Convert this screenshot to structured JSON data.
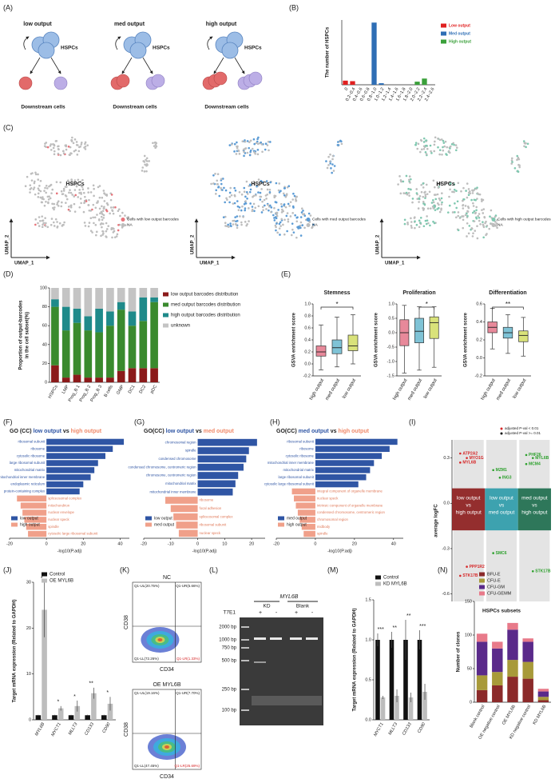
{
  "panel_labels": [
    "(A)",
    "(B)",
    "(C)",
    "(D)",
    "(E)",
    "(F)",
    "(G)",
    "(H)",
    "(I)",
    "(J)",
    "(K)",
    "(L)",
    "(M)",
    "(N)"
  ],
  "diagram": {
    "groups": [
      {
        "title": "low output",
        "hspc": "HSPCs",
        "downstream": "Downstream cells"
      },
      {
        "title": "med output",
        "hspc": "HSPCs",
        "downstream": "Downstream cells"
      },
      {
        "title": "high output",
        "hspc": "HSPCs",
        "downstream": "Downstream cells"
      }
    ]
  },
  "umaps": [
    {
      "center_label": "HSPCs",
      "legend": [
        "Cells with low output barcodes",
        "NA"
      ],
      "color": "#e8737a",
      "xlabel": "UMAP_1",
      "ylabel": "UMAP_2"
    },
    {
      "center_label": "HSPCs",
      "legend": [
        "Cells with med output barcodes",
        "NA"
      ],
      "color": "#5b9bd5",
      "xlabel": "UMAP_1",
      "ylabel": "UMAP_2"
    },
    {
      "center_label": "HSPCs",
      "legend": [
        "Cells with high output barcodes",
        "NA"
      ],
      "color": "#7fc8b0",
      "xlabel": "UMAP_1",
      "ylabel": "UMAP_2"
    }
  ],
  "flow": {
    "xlabel": "CD34",
    "ylabel": "CD38",
    "plots": [
      {
        "title": "NC",
        "quadrants": [
          "Q1-UL(20.75%)",
          "Q1-UR(5.66%)",
          "Q1-LL(72.26%)",
          "Q1-LR(1.33%)"
        ]
      },
      {
        "title": "OE MYL6B",
        "quadrants": [
          "Q1-UL(19.16%)",
          "Q1-UR(7.70%)",
          "Q1-LL(47.45%)",
          "Q1-LR(25.69%)"
        ]
      }
    ]
  },
  "gel": {
    "title": "MYL6B",
    "groups": [
      "KD",
      "Blank"
    ],
    "row_label": "T7E1",
    "lanes": [
      "+",
      "-",
      "+",
      "-"
    ],
    "ladder": [
      "2000 bp",
      "1000 bp",
      "750 bp",
      "500 bp",
      "250 bp",
      "100 bp"
    ]
  },
  "chart_data": [
    {
      "type": "bar",
      "stacked": true,
      "ylabel": "The number of HSPCs",
      "categories": [
        "0",
        "0.2~0.4",
        "0.4~0.6",
        "0.6~0.8",
        "0.8~1.0",
        "1.0~1.2",
        "1.2~1.4",
        "1.4~1.6",
        "1.6~1.8",
        "1.8~2.0",
        "2.0~2.2",
        "2.2~2.4",
        "2.4~2.6"
      ],
      "series": [
        {
          "name": "Low output",
          "color": "#e02020",
          "values": [
            8,
            7,
            0,
            0,
            0,
            0,
            0,
            0,
            0,
            0,
            0,
            0,
            0
          ]
        },
        {
          "name": "Med output",
          "color": "#2e6eb5",
          "values": [
            0,
            0,
            0,
            0,
            120,
            3,
            0,
            0,
            0,
            0,
            0,
            0,
            0
          ]
        },
        {
          "name": "High output",
          "color": "#3aa03a",
          "values": [
            0,
            0,
            0,
            0,
            0,
            0,
            0,
            0,
            0,
            0,
            6,
            12,
            0
          ]
        }
      ],
      "ylim": [
        0,
        125
      ]
    },
    {
      "type": "bar",
      "stacked": true,
      "ylabel": [
        "Proportion of output-barcodes",
        "in the cell subset(%)"
      ],
      "categories": [
        "HSPCs",
        "LMP",
        "Prog_B 1",
        "Prog_B 2",
        "Prog_B 3",
        "B cells",
        "GMP",
        "DC1",
        "DC2",
        "pDC"
      ],
      "series": [
        {
          "name": "low output barcodes distribution",
          "color": "#8b1a1a",
          "values": [
            18,
            5,
            8,
            5,
            5,
            5,
            12,
            15,
            15,
            15
          ]
        },
        {
          "name": "med output barcodes distribution",
          "color": "#3a8a2e",
          "values": [
            62,
            50,
            55,
            50,
            48,
            55,
            65,
            45,
            50,
            70
          ]
        },
        {
          "name": "high output barcodes distribution",
          "color": "#1f8a8a",
          "values": [
            8,
            25,
            15,
            15,
            25,
            15,
            8,
            15,
            25,
            5
          ]
        },
        {
          "name": "unknown",
          "color": "#c4c4c4",
          "values": [
            12,
            20,
            22,
            30,
            22,
            25,
            15,
            25,
            10,
            10
          ]
        }
      ],
      "ylim": [
        0,
        100
      ],
      "yticks": [
        0,
        20,
        40,
        60,
        80,
        100
      ]
    },
    {
      "type": "box",
      "title": "Stemness",
      "ylabel": "GSVA enrichment score",
      "categories": [
        "high output",
        "med output",
        "low output"
      ],
      "colors": [
        "#e8899a",
        "#7fc3d6",
        "#d9e27a"
      ],
      "boxes": [
        {
          "min": -0.1,
          "q1": 0.13,
          "median": 0.2,
          "q3": 0.3,
          "max": 0.65
        },
        {
          "min": -0.05,
          "q1": 0.17,
          "median": 0.27,
          "q3": 0.4,
          "max": 0.78
        },
        {
          "min": 0,
          "q1": 0.22,
          "median": 0.3,
          "q3": 0.48,
          "max": 0.82
        }
      ],
      "comparisons": [
        {
          "groups": [
            "high output",
            "low output"
          ],
          "label": "*"
        }
      ],
      "ylim": [
        -0.2,
        1
      ],
      "yticks": [
        -0.2,
        {
          "value": 0,
          "label": "0.0"
        },
        0.2,
        0.4,
        0.6,
        0.8,
        {
          "value": 1,
          "label": "1.0"
        }
      ]
    },
    {
      "type": "box",
      "title": "Proliferation",
      "ylabel": "GSVA enrichment score",
      "categories": [
        "high output",
        "med output",
        "low output"
      ],
      "colors": [
        "#e8899a",
        "#7fc3d6",
        "#d9e27a"
      ],
      "boxes": [
        {
          "min": -1.4,
          "q1": -0.45,
          "median": 0,
          "q3": 0.45,
          "max": 0.95
        },
        {
          "min": -1.3,
          "q1": -0.35,
          "median": 0.05,
          "q3": 0.5,
          "max": 0.9
        },
        {
          "min": -1.2,
          "q1": -0.2,
          "median": 0.35,
          "q3": 0.55,
          "max": 0.9
        }
      ],
      "comparisons": [
        {
          "groups": [
            "med output",
            "low output"
          ],
          "label": "*"
        }
      ],
      "ylim": [
        -1.5,
        1
      ],
      "yticks": [
        -1.5,
        {
          "value": -1,
          "label": "-1.0"
        },
        -0.5,
        {
          "value": 0,
          "label": "0.0"
        },
        0.5,
        {
          "value": 1,
          "label": "1.0"
        }
      ]
    },
    {
      "type": "box",
      "title": "Differentiation",
      "ylabel": "GSVA enrichment score",
      "categories": [
        "high output",
        "med output",
        "low output"
      ],
      "colors": [
        "#e8899a",
        "#7fc3d6",
        "#d9e27a"
      ],
      "boxes": [
        {
          "min": 0.1,
          "q1": 0.28,
          "median": 0.34,
          "q3": 0.4,
          "max": 0.55
        },
        {
          "min": 0.05,
          "q1": 0.22,
          "median": 0.28,
          "q3": 0.34,
          "max": 0.48
        },
        {
          "min": 0.02,
          "q1": 0.18,
          "median": 0.25,
          "q3": 0.3,
          "max": 0.45
        }
      ],
      "comparisons": [
        {
          "groups": [
            "high output",
            "low output"
          ],
          "label": "**"
        }
      ],
      "ylim": [
        -0.2,
        0.6
      ],
      "yticks": [
        -0.2,
        {
          "value": 0,
          "label": "0.0"
        },
        0.2,
        0.4,
        0.6
      ]
    },
    {
      "type": "barh",
      "title": [
        {
          "text": "GO (CC)",
          "color": "#1a1a1a"
        },
        {
          "text": "low output",
          "color": "#2f55a4"
        },
        {
          "text": "vs",
          "color": "#1a1a1a"
        },
        {
          "text": "high output",
          "color": "#f08a6a"
        }
      ],
      "xlabel": "-log10(P.adj)",
      "categories": [
        "ribosomal subunit",
        "ribosome",
        "cytosolic ribosome",
        "large ribosomal subunit",
        "mitochondrial matrix",
        "mitochondrial inner membrane",
        "endoplasmic reticulum",
        "protein-containing complex",
        "spliceosomal complex",
        "mitochondrion",
        "nuclear envelope",
        "nuclear speck",
        "spindle",
        "cytosolic large ribosomal subunit"
      ],
      "series": [
        {
          "name": "low output",
          "color": "#2f55a4",
          "values": [
            42,
            36,
            32,
            28,
            26,
            24,
            20,
            18,
            null,
            null,
            null,
            null,
            null,
            null
          ]
        },
        {
          "name": "high output",
          "color": "#f0a08a",
          "values": [
            null,
            null,
            null,
            null,
            null,
            null,
            null,
            null,
            -16,
            -14,
            -13,
            -12,
            -11,
            -10
          ]
        }
      ],
      "xlim": [
        -20,
        45
      ],
      "xticks": [
        -20,
        0,
        20,
        40
      ]
    },
    {
      "type": "barh",
      "title": [
        {
          "text": "GO(CC)",
          "color": "#1a1a1a"
        },
        {
          "text": "low output",
          "color": "#2f55a4"
        },
        {
          "text": "vs",
          "color": "#1a1a1a"
        },
        {
          "text": "med output",
          "color": "#f08a6a"
        }
      ],
      "xlabel": "-log10(P.adj)",
      "categories": [
        "chromosomal region",
        "spindle",
        "condensed chromosome",
        "condensed chromosome, centromeric region",
        "chromosome, centromeric region",
        "mitochondrial matrix",
        "mitochondrial inner membrane",
        "ribosome",
        "focal adhesion",
        "spliceosomal complex",
        "ribosomal subunit",
        "nuclear speck"
      ],
      "series": [
        {
          "name": "low output",
          "color": "#2f55a4",
          "values": [
            22,
            19,
            18,
            17,
            15,
            14,
            13,
            null,
            null,
            null,
            null,
            null
          ]
        },
        {
          "name": "med output",
          "color": "#f0a08a",
          "values": [
            null,
            null,
            null,
            null,
            null,
            null,
            null,
            -12,
            -10,
            -9,
            -8,
            -7
          ]
        }
      ],
      "xlim": [
        -20,
        25
      ],
      "xticks": [
        -20,
        -10,
        0,
        10,
        20
      ]
    },
    {
      "type": "barh",
      "title": [
        {
          "text": "GO(CC)",
          "color": "#1a1a1a"
        },
        {
          "text": "med output",
          "color": "#2f55a4"
        },
        {
          "text": "vs",
          "color": "#1a1a1a"
        },
        {
          "text": "high output",
          "color": "#f08a6a"
        }
      ],
      "xlabel": "-log10(P.adj)",
      "categories": [
        "ribosomal subunit",
        "ribosome",
        "cytosolic ribosome",
        "mitochondrial inner membrane",
        "mitochondrial matrix",
        "large ribosomal subunit",
        "cytosolic large ribosomal subunit",
        "integral component of organelle membrane",
        "nuclear speck",
        "intrinsic component of organelle membrane",
        "condensed chromosome, centromeric region",
        "chromosomal region",
        "midbody",
        "spindle"
      ],
      "series": [
        {
          "name": "med output",
          "color": "#2f55a4",
          "values": [
            42,
            38,
            34,
            30,
            28,
            26,
            22,
            null,
            null,
            null,
            null,
            null,
            null,
            null
          ]
        },
        {
          "name": "high output",
          "color": "#f0a08a",
          "values": [
            null,
            null,
            null,
            null,
            null,
            null,
            null,
            -12,
            -11,
            -10,
            -9,
            -8,
            -7,
            -6
          ]
        }
      ],
      "xlim": [
        -20,
        45
      ],
      "xticks": [
        -20,
        0,
        20,
        40
      ]
    },
    {
      "type": "strip",
      "ylabel": "average logFC",
      "xlabel": "HSPCs subsets",
      "legend": [
        {
          "label": "adjusted P-val < 0.01",
          "color": "#d62728"
        },
        {
          "label": "adjusted P-val >= 0.01",
          "color": "#111111"
        }
      ],
      "categories": [
        {
          "lines": [
            "low output",
            "vs",
            "high output"
          ],
          "color": "#8b1a1a",
          "label_color": "#d62728",
          "genes": [
            {
              "label": "ATP2A2",
              "logFC": 0.33
            },
            {
              "label": "MYO1G",
              "logFC": 0.3
            },
            {
              "label": "MYL6B",
              "logFC": 0.27
            },
            {
              "label": "PPP1R2",
              "logFC": -0.42
            },
            {
              "label": "STK17B",
              "logFC": -0.48
            }
          ]
        },
        {
          "lines": [
            "low output",
            "vs",
            "med output"
          ],
          "color": "#2a9aa8",
          "label_color": "#2ca02c",
          "genes": [
            {
              "label": "MZM1",
              "logFC": 0.22
            },
            {
              "label": "ING3",
              "logFC": 0.17
            },
            {
              "label": "SMC6",
              "logFC": -0.33
            }
          ]
        },
        {
          "lines": [
            "med output",
            "vs",
            "high output"
          ],
          "color": "#1a6a4a",
          "label_color": "#2ca02c",
          "genes": [
            {
              "label": "PHF26",
              "logFC": 0.32
            },
            {
              "label": "MYL6B",
              "logFC": 0.3
            },
            {
              "label": "MCM4",
              "logFC": 0.26
            },
            {
              "label": "STK17B",
              "logFC": -0.45
            }
          ]
        }
      ],
      "ylim": [
        -0.65,
        0.42
      ],
      "yticks": [
        -0.6,
        -0.3,
        {
          "value": 0,
          "label": "0.0"
        },
        0.3
      ]
    },
    {
      "type": "bar",
      "italic_categories": true,
      "ylabel": "Target mRNA expression (Related to GAPDH)",
      "categories": [
        "MYL6B",
        "MYCT1",
        "MLLT3",
        "CD133",
        "CD90"
      ],
      "series": [
        {
          "name": "Control",
          "color": "#111111",
          "values": [
            1,
            1,
            1,
            1,
            1
          ],
          "errors": [
            0.1,
            0.1,
            0.1,
            0.1,
            0.1
          ]
        },
        {
          "name": "OE MYL6B",
          "color": "#bdbdbd",
          "values": [
            24,
            2.5,
            3,
            5.8,
            3.5
          ],
          "errors": [
            6,
            0.5,
            1.2,
            1.2,
            1.5
          ]
        }
      ],
      "significance": [
        "*",
        "*",
        "*",
        "**",
        "*"
      ],
      "ylim": [
        0,
        30
      ],
      "yticks": [
        0,
        10,
        20,
        30
      ]
    },
    {
      "type": "bar",
      "italic_categories": true,
      "ylabel": "Target mRNA expression (Related to GAPDH)",
      "categories": [
        "MYCT1",
        "MLLT3",
        "CD133",
        "CD90"
      ],
      "series": [
        {
          "name": "Control",
          "color": "#111111",
          "values": [
            1,
            1,
            1,
            1
          ],
          "errors": [
            0.08,
            0.1,
            0.25,
            0.12
          ]
        },
        {
          "name": "KD MYL6B",
          "color": "#bdbdbd",
          "values": [
            0.28,
            0.3,
            0.28,
            0.35
          ],
          "errors": [
            0.02,
            0.08,
            0.06,
            0.1
          ]
        }
      ],
      "significance": [
        "***",
        "**",
        "**",
        "***"
      ],
      "ylim": [
        0,
        1.5
      ],
      "yticks": [
        {
          "value": 0,
          "label": "0.0"
        },
        0.5,
        {
          "value": 1,
          "label": "1.0"
        },
        1.5
      ]
    },
    {
      "type": "bar",
      "stacked": true,
      "ylabel": "Number of clones",
      "categories": [
        "Blank control",
        "OE negative control",
        "OE MYL6B",
        "KD negative control",
        "KD MYL6B"
      ],
      "series": [
        {
          "name": "BFU-E",
          "color": "#8b2a2a",
          "values": [
            18,
            25,
            38,
            35,
            3
          ]
        },
        {
          "name": "CFU-E",
          "color": "#a89a3a",
          "values": [
            22,
            20,
            25,
            25,
            5
          ]
        },
        {
          "name": "CFU-GM",
          "color": "#5a2a8a",
          "values": [
            50,
            35,
            45,
            30,
            8
          ]
        },
        {
          "name": "CFU-GEMM",
          "color": "#e87a8a",
          "values": [
            12,
            10,
            10,
            5,
            4
          ]
        }
      ],
      "ylim": [
        0,
        150
      ],
      "yticks": [
        0,
        50,
        100,
        150
      ]
    }
  ]
}
